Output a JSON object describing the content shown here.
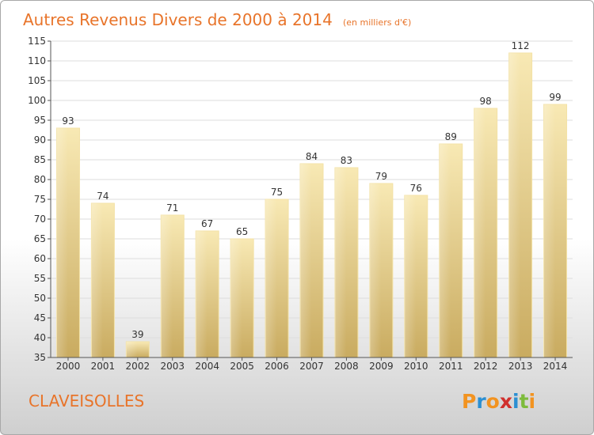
{
  "chart_data": {
    "type": "bar",
    "title": "Autres Revenus Divers de 2000 à 2014",
    "subtitle": "(en milliers d'€)",
    "categories": [
      "2000",
      "2001",
      "2002",
      "2003",
      "2004",
      "2005",
      "2006",
      "2007",
      "2008",
      "2009",
      "2010",
      "2011",
      "2012",
      "2013",
      "2014"
    ],
    "values": [
      93,
      74,
      39,
      71,
      67,
      65,
      75,
      84,
      83,
      79,
      76,
      89,
      98,
      112,
      99
    ],
    "ylim": [
      35,
      115
    ],
    "yticks": [
      35,
      40,
      45,
      50,
      55,
      60,
      65,
      70,
      75,
      80,
      85,
      90,
      95,
      100,
      105,
      110,
      115
    ],
    "grid": true,
    "bar_color": "#e8cd7c",
    "grid_color": "#dddddd"
  },
  "place": "CLAVEISOLLES",
  "logo": {
    "text": "Proxiti",
    "letters": [
      "P",
      "r",
      "o",
      "x",
      "i",
      "t",
      "i"
    ],
    "colors": [
      "#f29320",
      "#2b8fd2",
      "#f29320",
      "#d0302d",
      "#2b8fd2",
      "#7dbb3c",
      "#f29320"
    ]
  }
}
